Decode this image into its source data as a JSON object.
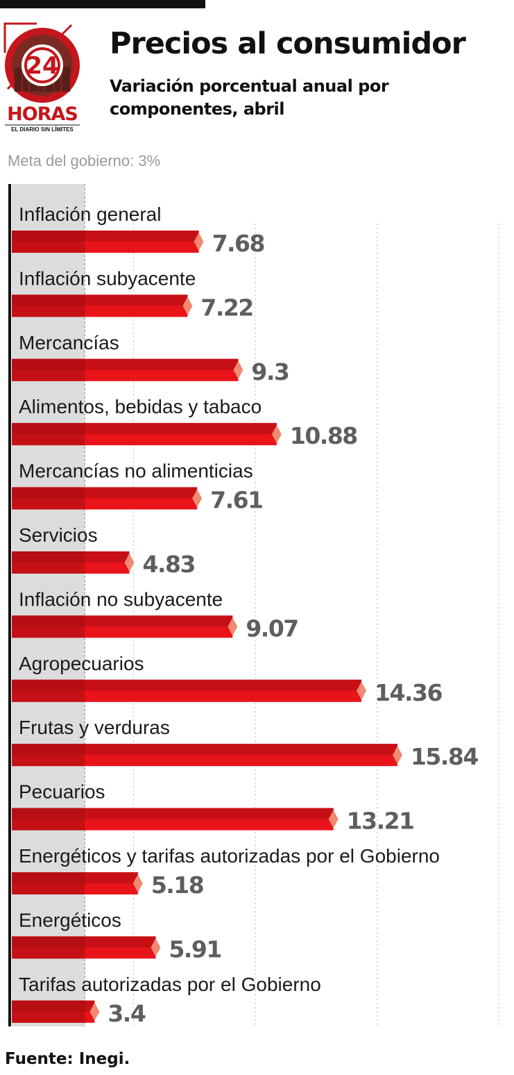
{
  "header": {
    "title": "Precios al consumidor",
    "subtitle": "Variación porcentual anual por componentes, abril"
  },
  "logo": {
    "number": "24",
    "name": "HORAS",
    "tagline": "EL DIARIO SIN LÍMITES"
  },
  "meta_label": "Meta del gobierno: 3%",
  "source": "Fuente: Inegi.",
  "colors": {
    "bar_dark": "#a80c12",
    "bar_mid": "#c71016",
    "bar_light": "#e8141a",
    "bar_tip": "#f08a70",
    "value_text": "#5e5e5e",
    "target_band": "#dcdcdc",
    "grid": "#bdbdbd",
    "axis": "#111111",
    "logo_red": "#c4161c"
  },
  "chart_data": {
    "type": "bar",
    "orientation": "horizontal",
    "categories": [
      "Inflación general",
      "Inflación subyacente",
      "Mercancías",
      "Alimentos, bebidas y tabaco",
      "Mercancías no alimenticias",
      "Servicios",
      "Inflación no subyacente",
      "Agropecuarios",
      "Frutas y verduras",
      "Pecuarios",
      "Energéticos y tarifas autorizadas por el Gobierno",
      "Energéticos",
      "Tarifas autorizadas por el Gobierno"
    ],
    "value_labels": [
      "7.68",
      "7.22",
      "9.3",
      "10.88",
      "7.61",
      "4.83",
      "9.07",
      "14.36",
      "15.84",
      "13.21",
      "5.18",
      "5.91",
      "3.4"
    ],
    "values": [
      7.68,
      7.22,
      9.3,
      10.88,
      7.61,
      4.83,
      9.07,
      14.36,
      15.84,
      13.21,
      5.18,
      5.91,
      3.4
    ],
    "target": 3,
    "xlim": [
      0,
      20
    ],
    "grid": true
  }
}
